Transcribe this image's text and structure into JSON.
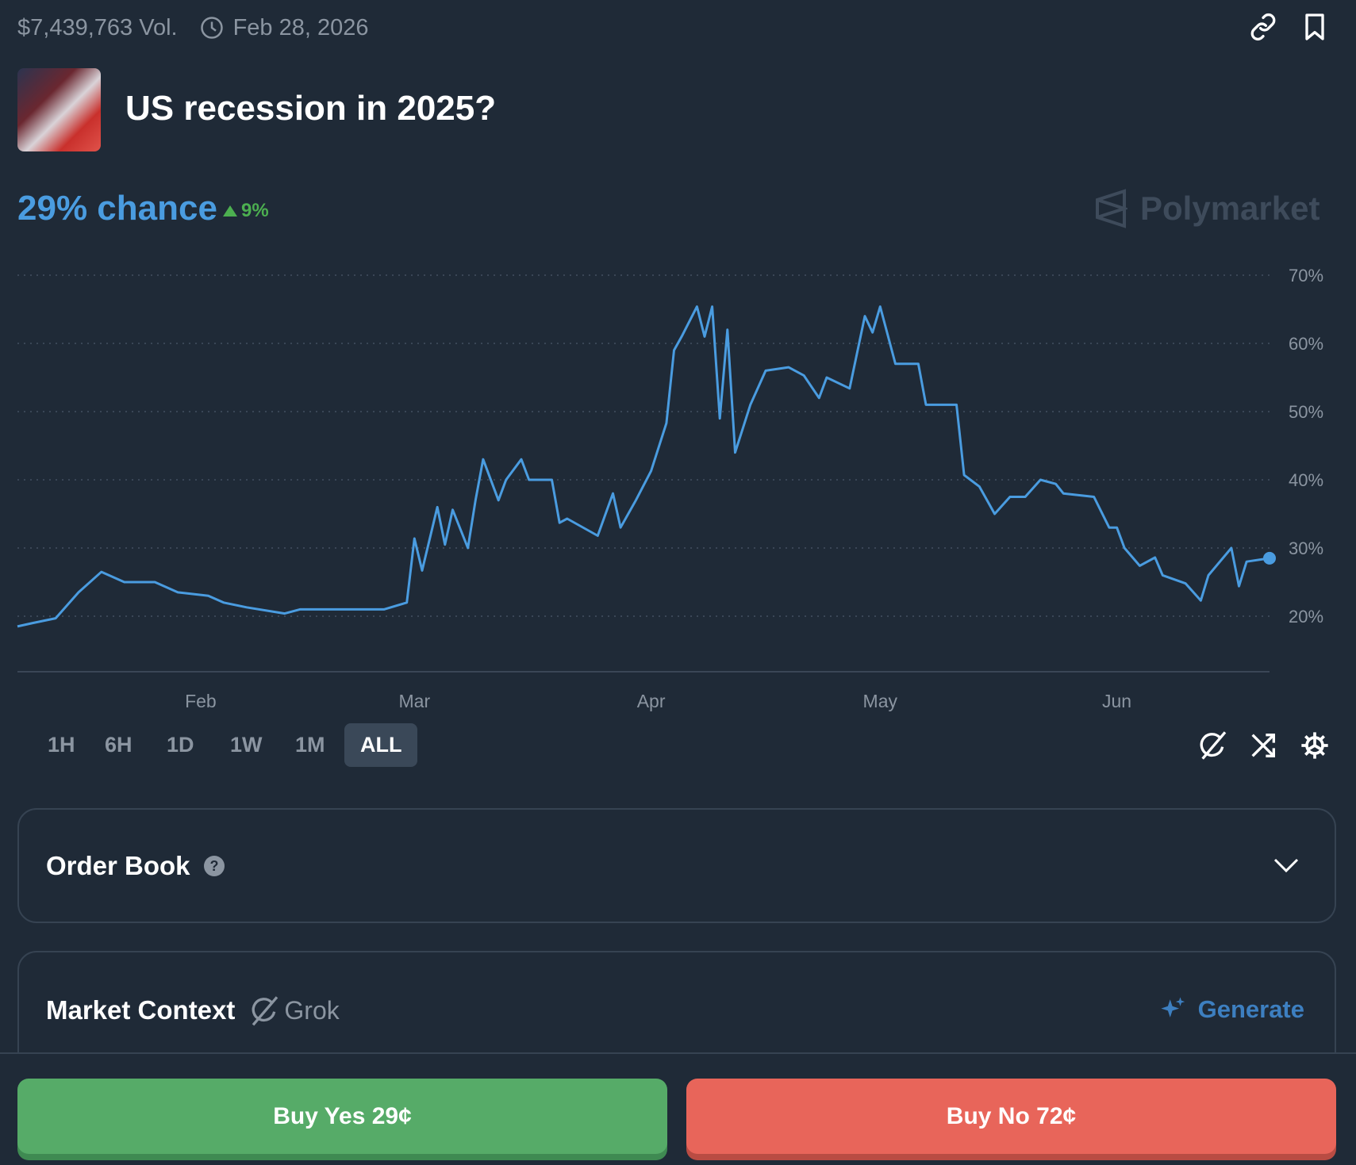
{
  "header": {
    "volume": "$7,439,763 Vol.",
    "end_date": "Feb 28, 2026",
    "icons": [
      "clock-icon",
      "link-icon",
      "bookmark-icon"
    ]
  },
  "market": {
    "title": "US recession in 2025?",
    "chance": "29% chance",
    "change": "9%",
    "change_direction": "up",
    "brand": "Polymarket"
  },
  "colors": {
    "accent": "#4a9ce0",
    "up": "#4caf50",
    "yes": "#56ab68",
    "no": "#e8655a",
    "background": "#1f2a37"
  },
  "chart_data": {
    "type": "line",
    "x_tick_labels": [
      "Feb",
      "Mar",
      "Apr",
      "May",
      "Jun"
    ],
    "x_ticks": [
      "2025-02-01",
      "2025-03-01",
      "2025-04-01",
      "2025-05-01",
      "2025-06-01"
    ],
    "y_tick_labels": [
      "70%",
      "60%",
      "50%",
      "40%",
      "30%",
      "20%"
    ],
    "y_ticks": [
      70,
      60,
      50,
      40,
      30,
      20
    ],
    "ylim": [
      14,
      72
    ],
    "grid": true,
    "y_axis_side": "right",
    "series": [
      {
        "color": "#4a9ce0",
        "points": [
          [
            "2025-01-08",
            18.5
          ],
          [
            "2025-01-10",
            19
          ],
          [
            "2025-01-13",
            19.7
          ],
          [
            "2025-01-16",
            23.5
          ],
          [
            "2025-01-19",
            26.5
          ],
          [
            "2025-01-22",
            25
          ],
          [
            "2025-01-26",
            25
          ],
          [
            "2025-01-29",
            23.5
          ],
          [
            "2025-02-02",
            23
          ],
          [
            "2025-02-04",
            22
          ],
          [
            "2025-02-07",
            21.3
          ],
          [
            "2025-02-12",
            20.4
          ],
          [
            "2025-02-14",
            21
          ],
          [
            "2025-02-25",
            21
          ],
          [
            "2025-02-28",
            22
          ],
          [
            "2025-03-01",
            31.4
          ],
          [
            "2025-03-02",
            26.7
          ],
          [
            "2025-03-04",
            36
          ],
          [
            "2025-03-05",
            30.5
          ],
          [
            "2025-03-06",
            35.6
          ],
          [
            "2025-03-08",
            30
          ],
          [
            "2025-03-09",
            37
          ],
          [
            "2025-03-10",
            43
          ],
          [
            "2025-03-12",
            37
          ],
          [
            "2025-03-13",
            40
          ],
          [
            "2025-03-15",
            43
          ],
          [
            "2025-03-16",
            40
          ],
          [
            "2025-03-19",
            40
          ],
          [
            "2025-03-20",
            33.7
          ],
          [
            "2025-03-21",
            34.3
          ],
          [
            "2025-03-25",
            31.8
          ],
          [
            "2025-03-27",
            38
          ],
          [
            "2025-03-28",
            33
          ],
          [
            "2025-03-30",
            37
          ],
          [
            "2025-04-01",
            41.3
          ],
          [
            "2025-04-03",
            48.3
          ],
          [
            "2025-04-04",
            59
          ],
          [
            "2025-04-05",
            61
          ],
          [
            "2025-04-07",
            65.4
          ],
          [
            "2025-04-08",
            61
          ],
          [
            "2025-04-09",
            65.4
          ],
          [
            "2025-04-10",
            49
          ],
          [
            "2025-04-11",
            62
          ],
          [
            "2025-04-12",
            44
          ],
          [
            "2025-04-14",
            51
          ],
          [
            "2025-04-16",
            56
          ],
          [
            "2025-04-19",
            56.5
          ],
          [
            "2025-04-21",
            55.3
          ],
          [
            "2025-04-23",
            52
          ],
          [
            "2025-04-24",
            55
          ],
          [
            "2025-04-27",
            53.4
          ],
          [
            "2025-04-29",
            64
          ],
          [
            "2025-04-30",
            61.6
          ],
          [
            "2025-05-01",
            65.4
          ],
          [
            "2025-05-03",
            57
          ],
          [
            "2025-05-06",
            57
          ],
          [
            "2025-05-07",
            51
          ],
          [
            "2025-05-11",
            51
          ],
          [
            "2025-05-12",
            40.7
          ],
          [
            "2025-05-14",
            39
          ],
          [
            "2025-05-16",
            35
          ],
          [
            "2025-05-18",
            37.5
          ],
          [
            "2025-05-20",
            37.5
          ],
          [
            "2025-05-22",
            40
          ],
          [
            "2025-05-24",
            39.4
          ],
          [
            "2025-05-25",
            38
          ],
          [
            "2025-05-29",
            37.5
          ],
          [
            "2025-05-31",
            33
          ],
          [
            "2025-06-01",
            33
          ],
          [
            "2025-06-02",
            30
          ],
          [
            "2025-06-04",
            27.4
          ],
          [
            "2025-06-06",
            28.6
          ],
          [
            "2025-06-07",
            26
          ],
          [
            "2025-06-10",
            24.8
          ],
          [
            "2025-06-12",
            22.3
          ],
          [
            "2025-06-13",
            26
          ],
          [
            "2025-06-16",
            30
          ],
          [
            "2025-06-17",
            24.4
          ],
          [
            "2025-06-18",
            28
          ],
          [
            "2025-06-21",
            28.5
          ]
        ]
      }
    ]
  },
  "time_ranges": [
    "1H",
    "6H",
    "1D",
    "1W",
    "1M",
    "ALL"
  ],
  "active_range": "ALL",
  "chart_controls": [
    "grok-icon",
    "shuffle-icon",
    "settings-icon"
  ],
  "order_book": {
    "title": "Order Book"
  },
  "market_context": {
    "title": "Market Context",
    "provider": "Grok",
    "action": "Generate"
  },
  "actions": {
    "buy_yes": "Buy Yes 29¢",
    "buy_no": "Buy No 72¢"
  }
}
